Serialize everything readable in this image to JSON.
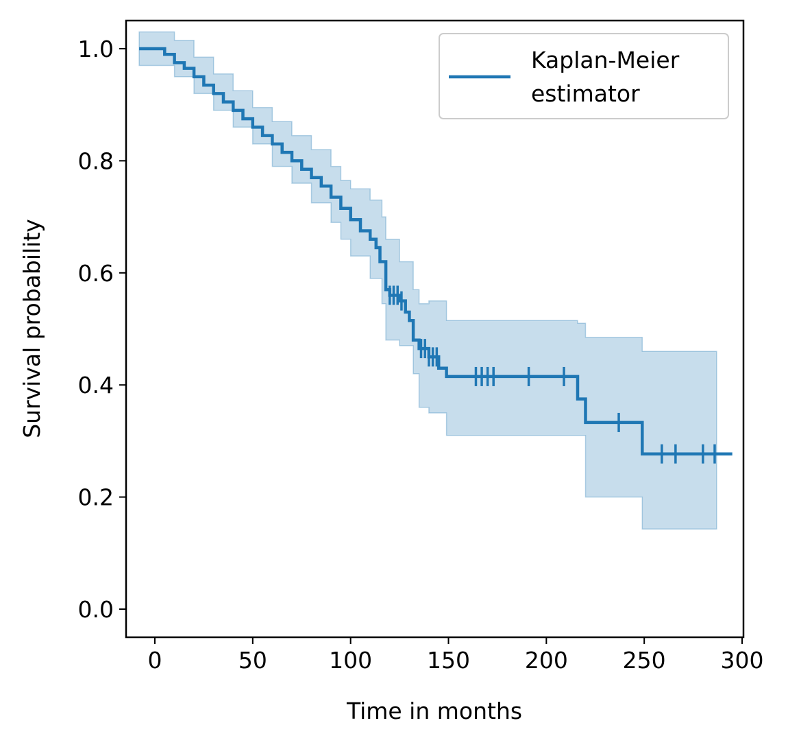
{
  "chart_data": {
    "type": "line",
    "title": "",
    "xlabel": "Time in months",
    "ylabel": "Survival probability",
    "xlim": [
      -15,
      300
    ],
    "ylim": [
      -0.05,
      1.05
    ],
    "xticks": [
      0,
      50,
      100,
      150,
      200,
      250,
      300
    ],
    "xtick_labels": [
      "0",
      "50",
      "100",
      "150",
      "200",
      "250",
      "300"
    ],
    "yticks": [
      0.0,
      0.2,
      0.4,
      0.6,
      0.8,
      1.0
    ],
    "ytick_labels": [
      "0.0",
      "0.2",
      "0.4",
      "0.6",
      "0.8",
      "1.0"
    ],
    "grid": false,
    "legend": {
      "position": "top-right",
      "entries": [
        "Kaplan-Meier estimator"
      ]
    },
    "colors": {
      "line": "#1f77b4",
      "band": "#1f77b4"
    },
    "series": [
      {
        "name": "Kaplan-Meier estimator",
        "step": [
          [
            -8,
            1.0
          ],
          [
            0,
            1.0
          ],
          [
            5,
            0.99
          ],
          [
            10,
            0.975
          ],
          [
            15,
            0.965
          ],
          [
            20,
            0.95
          ],
          [
            25,
            0.935
          ],
          [
            30,
            0.92
          ],
          [
            35,
            0.905
          ],
          [
            40,
            0.89
          ],
          [
            45,
            0.875
          ],
          [
            50,
            0.86
          ],
          [
            55,
            0.845
          ],
          [
            60,
            0.83
          ],
          [
            65,
            0.815
          ],
          [
            70,
            0.8
          ],
          [
            75,
            0.785
          ],
          [
            80,
            0.77
          ],
          [
            85,
            0.755
          ],
          [
            90,
            0.735
          ],
          [
            95,
            0.715
          ],
          [
            100,
            0.695
          ],
          [
            105,
            0.675
          ],
          [
            110,
            0.66
          ],
          [
            113,
            0.645
          ],
          [
            115,
            0.62
          ],
          [
            118,
            0.57
          ],
          [
            120,
            0.56
          ],
          [
            125,
            0.55
          ],
          [
            128,
            0.53
          ],
          [
            130,
            0.515
          ],
          [
            132,
            0.48
          ],
          [
            135,
            0.465
          ],
          [
            140,
            0.45
          ],
          [
            145,
            0.43
          ],
          [
            149,
            0.415
          ],
          [
            216,
            0.375
          ],
          [
            220,
            0.333
          ],
          [
            249,
            0.277
          ],
          [
            295,
            0.277
          ]
        ],
        "ci": [
          [
            -8,
            1.03,
            0.97
          ],
          [
            0,
            1.03,
            0.97
          ],
          [
            10,
            1.015,
            0.95
          ],
          [
            20,
            0.985,
            0.92
          ],
          [
            30,
            0.955,
            0.89
          ],
          [
            40,
            0.925,
            0.86
          ],
          [
            50,
            0.895,
            0.83
          ],
          [
            60,
            0.87,
            0.79
          ],
          [
            70,
            0.845,
            0.76
          ],
          [
            80,
            0.82,
            0.725
          ],
          [
            90,
            0.79,
            0.69
          ],
          [
            95,
            0.765,
            0.66
          ],
          [
            100,
            0.75,
            0.63
          ],
          [
            110,
            0.73,
            0.59
          ],
          [
            116,
            0.7,
            0.545
          ],
          [
            118,
            0.66,
            0.48
          ],
          [
            125,
            0.62,
            0.47
          ],
          [
            132,
            0.57,
            0.42
          ],
          [
            135,
            0.545,
            0.36
          ],
          [
            140,
            0.55,
            0.35
          ],
          [
            149,
            0.515,
            0.31
          ],
          [
            216,
            0.51,
            0.31
          ],
          [
            220,
            0.485,
            0.2
          ],
          [
            249,
            0.46,
            0.143
          ],
          [
            287,
            0.428,
            0.143
          ]
        ],
        "censor_times": [
          120,
          122,
          124,
          126,
          136,
          138,
          140,
          142,
          144,
          164,
          167,
          170,
          173,
          191,
          209,
          237,
          259,
          266,
          280,
          286
        ]
      }
    ]
  }
}
